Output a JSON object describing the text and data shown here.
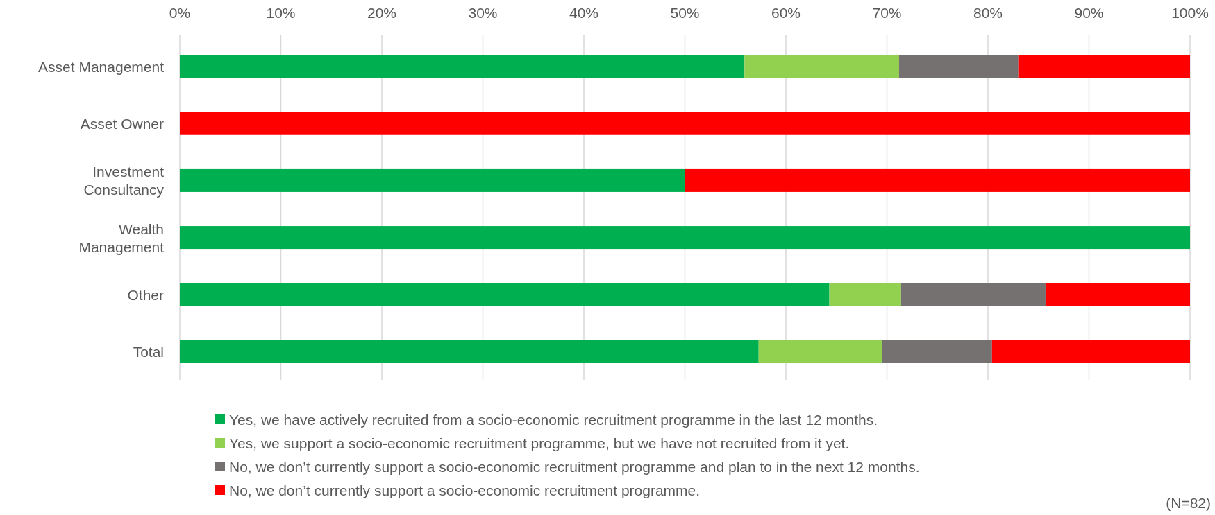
{
  "chart_data": {
    "type": "bar",
    "orientation": "horizontal",
    "stacked": true,
    "categories": [
      "Asset Management",
      "Asset Owner",
      "Investment Consultancy",
      "Wealth Management",
      "Other",
      "Total"
    ],
    "series": [
      {
        "name": "Yes, we have actively recruited from a socio-economic recruitment programme in the last 12 months.",
        "color": "#00b050",
        "values": [
          55.9,
          0,
          50,
          100,
          64.3,
          57.3
        ]
      },
      {
        "name": "Yes, we support a socio-economic recruitment programme, but we have not recruited from it yet.",
        "color": "#92d050",
        "values": [
          15.3,
          0,
          0,
          0,
          7.1,
          12.2
        ]
      },
      {
        "name": "No, we don’t currently support a socio-economic recruitment programme and plan to in the next 12 months.",
        "color": "#767171",
        "values": [
          11.8,
          0,
          0,
          0,
          14.3,
          10.9
        ]
      },
      {
        "name": "No, we don’t currently support a socio-economic recruitment programme.",
        "color": "#ff0000",
        "values": [
          17.0,
          100,
          50,
          0,
          14.3,
          19.6
        ]
      }
    ],
    "xlim": [
      0,
      100
    ],
    "xticks": [
      {
        "value": 0,
        "label": "0%"
      },
      {
        "value": 10,
        "label": "10%"
      },
      {
        "value": 20,
        "label": "20%"
      },
      {
        "value": 30,
        "label": "30%"
      },
      {
        "value": 40,
        "label": "40%"
      },
      {
        "value": 50,
        "label": "50%"
      },
      {
        "value": 60,
        "label": "60%"
      },
      {
        "value": 70,
        "label": "70%"
      },
      {
        "value": 80,
        "label": "80%"
      },
      {
        "value": 90,
        "label": "90%"
      },
      {
        "value": 100,
        "label": "100%"
      }
    ],
    "grid": "x",
    "legend": "bottom",
    "annotations": [
      "(N=82)"
    ]
  }
}
